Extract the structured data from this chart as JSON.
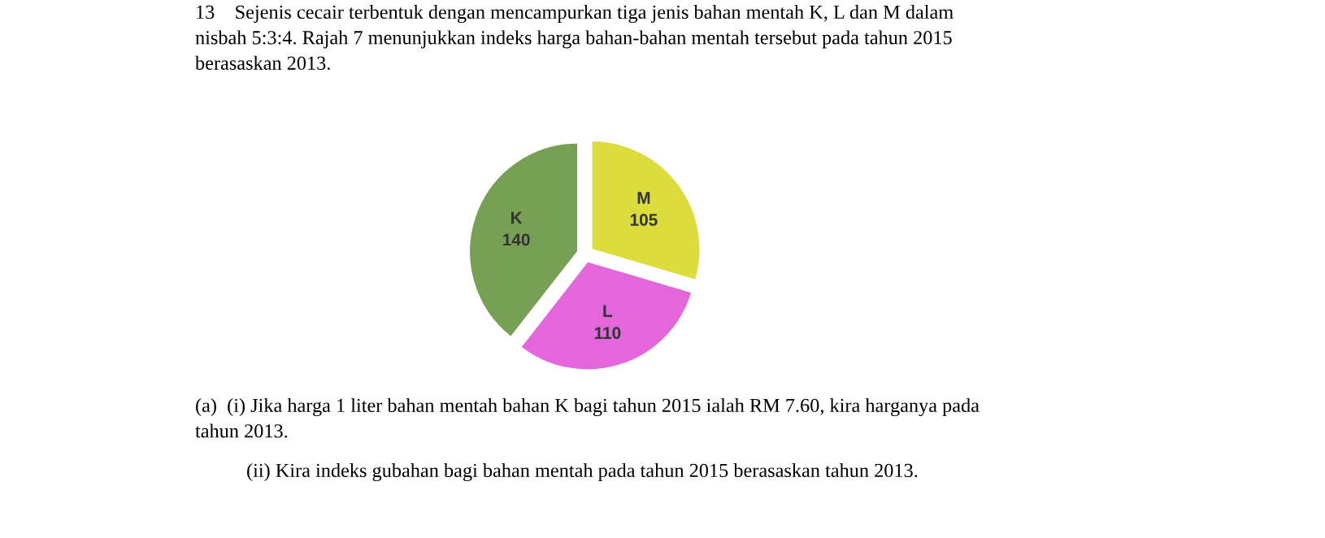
{
  "chart_data": {
    "type": "pie",
    "title": "13    Sejenis cecair terbentuk dengan mencampurkan tiga jenis bahan mentah K, L dan M dalam nisbah 5:3:4. Rajah 7 menunjukkan indeks harga bahan-bahan mentah tersebut pada tahun 2015 berasaskan 2013.",
    "categories": [
      "K",
      "L",
      "M"
    ],
    "values": [
      140,
      110,
      105
    ],
    "colors": [
      "#78a055",
      "#e366dc",
      "#dcdc3c"
    ],
    "data_labels": true,
    "legend": false,
    "annotations": [
      "(a)  (i) Jika harga 1 liter bahan mentah bahan K bagi tahun 2015 ialah RM 7.60, kira harganya pada tahun 2013.",
      "(ii) Kira indeks gubahan bagi bahan mentah pada tahun 2015 berasaskan tahun 2013."
    ]
  }
}
